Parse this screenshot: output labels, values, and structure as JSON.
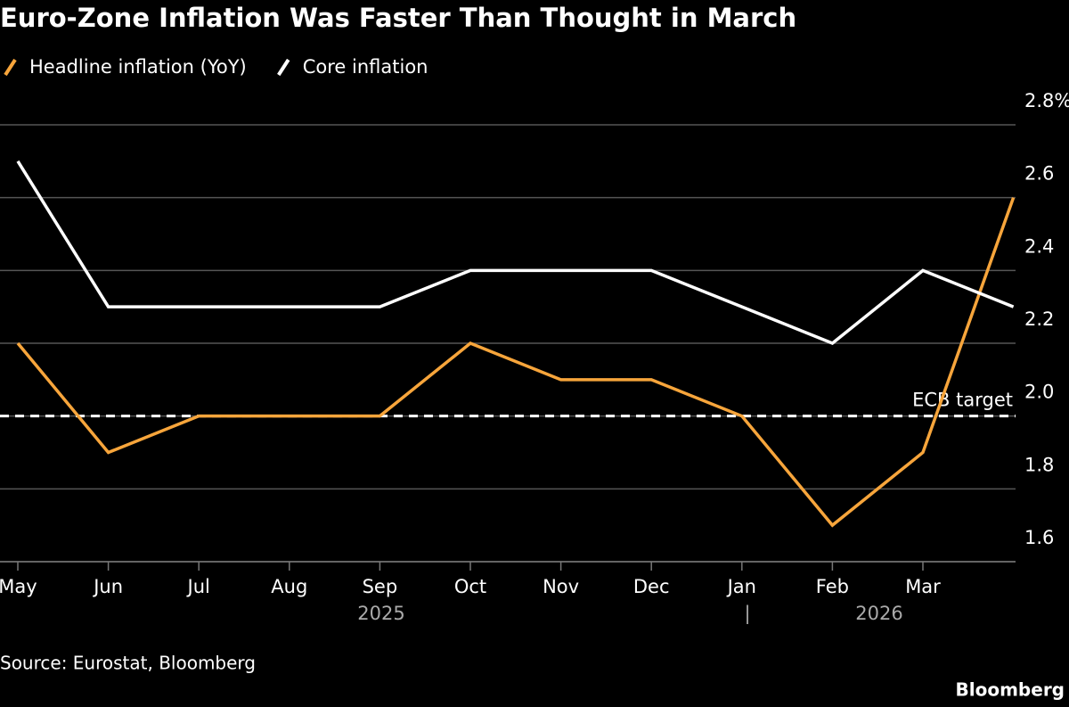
{
  "chart_data": {
    "type": "line",
    "title": "Euro-Zone Inflation Was Faster Than Thought in March",
    "categories": [
      "May",
      "Jun",
      "Jul",
      "Aug",
      "Sep",
      "Oct",
      "Nov",
      "Dec",
      "Jan",
      "Feb",
      "Mar",
      null
    ],
    "series": [
      {
        "name": "Headline inflation (YoY)",
        "color": "#f7a53b",
        "values": [
          2.2,
          1.9,
          2.0,
          2.0,
          2.0,
          2.2,
          2.1,
          2.1,
          2.0,
          1.7,
          1.9,
          2.6
        ]
      },
      {
        "name": "Core inflation",
        "color": "#ffffff",
        "values": [
          2.7,
          2.3,
          2.3,
          2.3,
          2.3,
          2.4,
          2.4,
          2.4,
          2.3,
          2.2,
          2.4,
          2.3
        ]
      }
    ],
    "ylim": [
      1.6,
      2.8
    ],
    "yticks": [
      1.6,
      1.8,
      {
        "value": 2,
        "label": "2.0"
      },
      2.2,
      2.4,
      2.6,
      {
        "value": 2.8,
        "label": "2.8%"
      }
    ],
    "grid": true,
    "target": {
      "label": "ECB target",
      "value": 2
    },
    "year_labels": [
      "2025",
      "2026"
    ],
    "source": "Source: Eurostat, Bloomberg",
    "brand": "Bloomberg"
  }
}
